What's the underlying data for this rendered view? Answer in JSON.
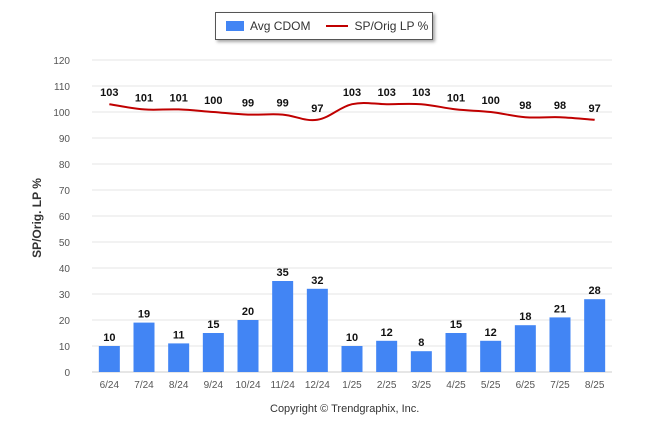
{
  "legend": {
    "bar_label": "Avg CDOM",
    "line_label": "SP/Orig LP %"
  },
  "footer": {
    "copyright": "Copyright © Trendgraphix, Inc."
  },
  "colors": {
    "bar": "#4285f4",
    "line": "#c00000",
    "grid": "#e6e6e6",
    "text": "#333333"
  },
  "chart_data": {
    "type": "bar",
    "title": "",
    "xlabel": "",
    "ylabel": "SP/Orig. LP %",
    "ylim": [
      0,
      120
    ],
    "yticks": [
      0,
      10,
      20,
      30,
      40,
      50,
      60,
      70,
      80,
      90,
      100,
      110,
      120
    ],
    "grid": true,
    "legend_position": "top",
    "categories": [
      "6/24",
      "7/24",
      "8/24",
      "9/24",
      "10/24",
      "11/24",
      "12/24",
      "1/25",
      "2/25",
      "3/25",
      "4/25",
      "5/25",
      "6/25",
      "7/25",
      "8/25"
    ],
    "series": [
      {
        "name": "Avg CDOM",
        "type": "bar",
        "values": [
          10,
          19,
          11,
          15,
          20,
          35,
          32,
          10,
          12,
          8,
          15,
          12,
          18,
          21,
          28
        ]
      },
      {
        "name": "SP/Orig LP %",
        "type": "line",
        "values": [
          103,
          101,
          101,
          100,
          99,
          99,
          97,
          103,
          103,
          103,
          101,
          100,
          98,
          98,
          97
        ]
      }
    ]
  }
}
